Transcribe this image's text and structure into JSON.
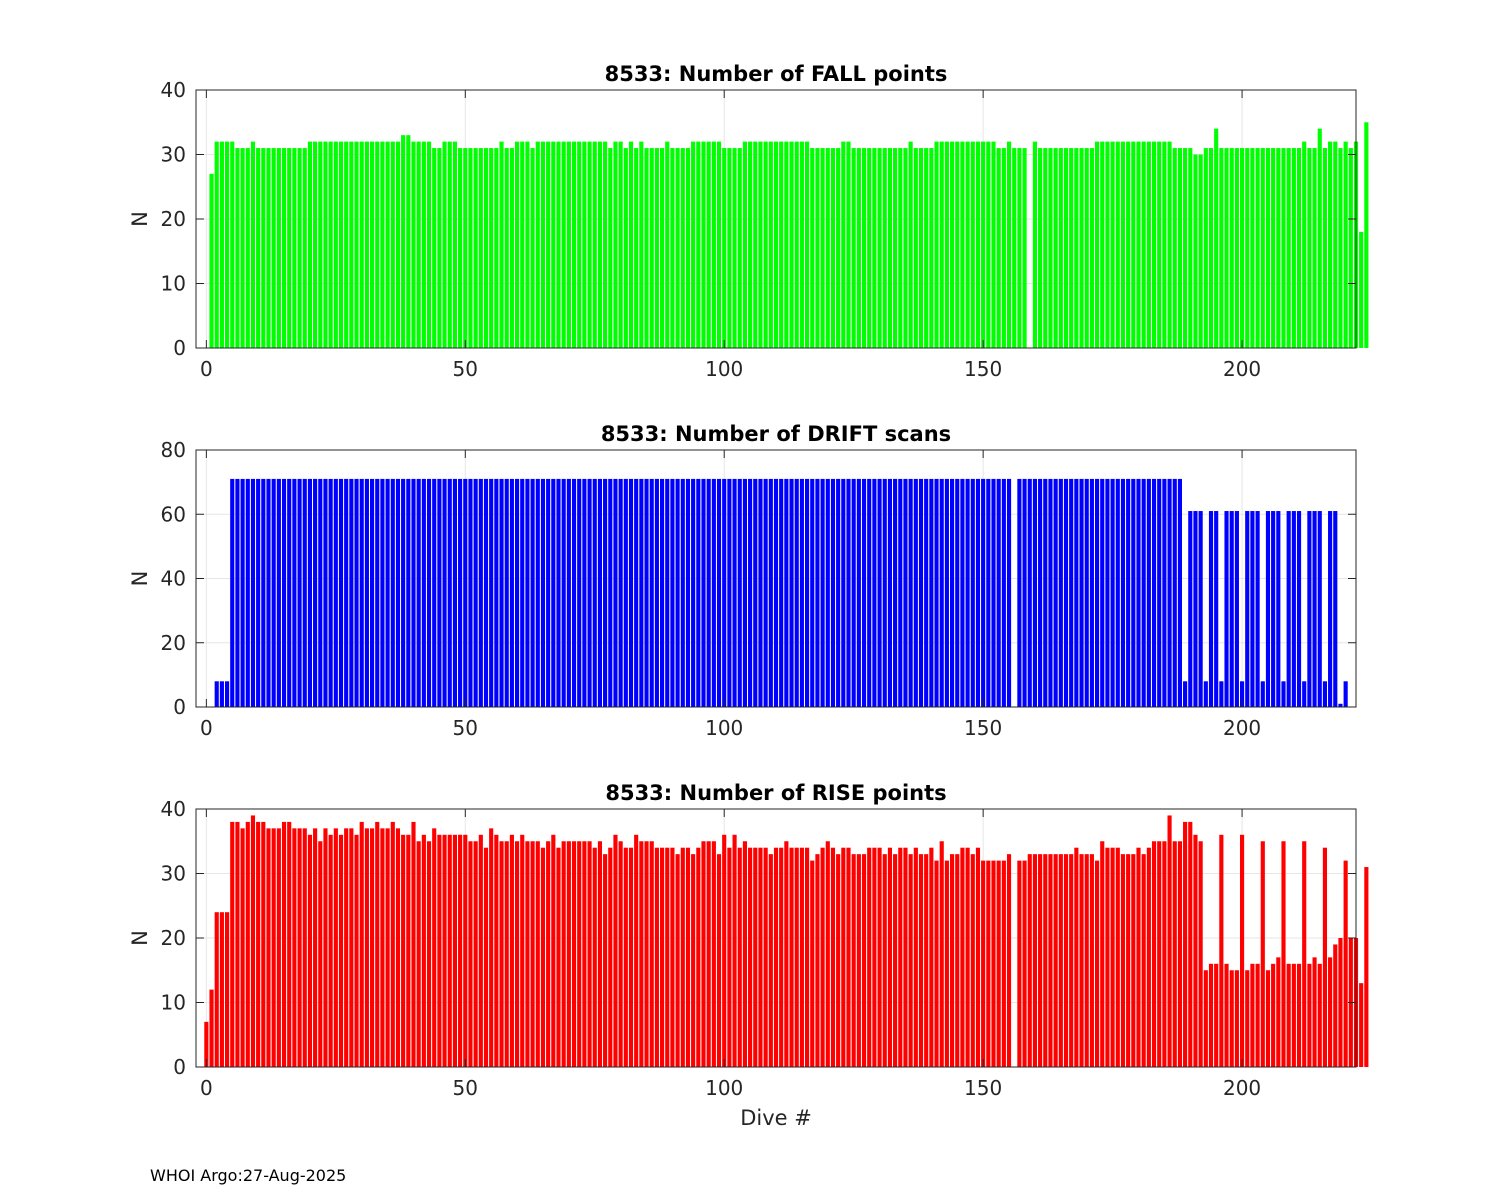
{
  "footer": "WHOI Argo:27-Aug-2025",
  "chart_data": [
    {
      "type": "bar",
      "title": "8533: Number of FALL points",
      "xlabel": "",
      "ylabel": "N",
      "xlim": [
        -2,
        222
      ],
      "ylim": [
        0,
        40
      ],
      "xticks": [
        0,
        50,
        100,
        150,
        200
      ],
      "yticks": [
        0,
        10,
        20,
        30,
        40
      ],
      "grid": true,
      "color": "#00ff00",
      "x_start": 1,
      "values": [
        27,
        32,
        32,
        32,
        32,
        31,
        31,
        31,
        32,
        31,
        31,
        31,
        31,
        31,
        31,
        31,
        31,
        31,
        31,
        32,
        32,
        32,
        32,
        32,
        32,
        32,
        32,
        32,
        32,
        32,
        32,
        32,
        32,
        32,
        32,
        32,
        32,
        33,
        33,
        32,
        32,
        32,
        32,
        31,
        31,
        32,
        32,
        32,
        31,
        31,
        31,
        31,
        31,
        31,
        31,
        31,
        32,
        31,
        31,
        32,
        32,
        32,
        31,
        32,
        32,
        32,
        32,
        32,
        32,
        32,
        32,
        32,
        32,
        32,
        32,
        32,
        32,
        31,
        32,
        32,
        31,
        32,
        31,
        32,
        31,
        31,
        31,
        31,
        32,
        31,
        31,
        31,
        31,
        32,
        32,
        32,
        32,
        32,
        32,
        31,
        31,
        31,
        31,
        32,
        32,
        32,
        32,
        32,
        32,
        32,
        32,
        32,
        32,
        32,
        32,
        32,
        31,
        31,
        31,
        31,
        31,
        31,
        32,
        32,
        31,
        31,
        31,
        31,
        31,
        31,
        31,
        31,
        31,
        31,
        31,
        32,
        31,
        31,
        31,
        31,
        32,
        32,
        32,
        32,
        32,
        32,
        32,
        32,
        32,
        32,
        32,
        32,
        31,
        31,
        32,
        31,
        31,
        31,
        null,
        32,
        31,
        31,
        31,
        31,
        31,
        31,
        31,
        31,
        31,
        31,
        31,
        32,
        32,
        32,
        32,
        32,
        32,
        32,
        32,
        32,
        32,
        32,
        32,
        32,
        32,
        32,
        31,
        31,
        31,
        31,
        30,
        30,
        31,
        31,
        34,
        31,
        31,
        31,
        31,
        31,
        31,
        31,
        31,
        31,
        31,
        31,
        31,
        31,
        31,
        31,
        31,
        32,
        31,
        31,
        34,
        31,
        32,
        32,
        31,
        32,
        31,
        32,
        18,
        35
      ]
    },
    {
      "type": "bar",
      "title": "8533: Number of DRIFT scans",
      "xlabel": "",
      "ylabel": "N",
      "xlim": [
        -2,
        222
      ],
      "ylim": [
        0,
        80
      ],
      "xticks": [
        0,
        50,
        100,
        150,
        200
      ],
      "yticks": [
        0,
        20,
        40,
        60,
        80
      ],
      "grid": true,
      "color": "#0000ff",
      "x_start": 1,
      "values": [
        0,
        8,
        8,
        8,
        71,
        71,
        71,
        71,
        71,
        71,
        71,
        71,
        71,
        71,
        71,
        71,
        71,
        71,
        71,
        71,
        71,
        71,
        71,
        71,
        71,
        71,
        71,
        71,
        71,
        71,
        71,
        71,
        71,
        71,
        71,
        71,
        71,
        71,
        71,
        71,
        71,
        71,
        71,
        71,
        71,
        71,
        71,
        71,
        71,
        71,
        71,
        71,
        71,
        71,
        71,
        71,
        71,
        71,
        71,
        71,
        71,
        71,
        71,
        71,
        71,
        71,
        71,
        71,
        71,
        71,
        71,
        71,
        71,
        71,
        71,
        71,
        71,
        71,
        71,
        71,
        71,
        71,
        71,
        71,
        71,
        71,
        71,
        71,
        71,
        71,
        71,
        71,
        71,
        71,
        71,
        71,
        71,
        71,
        71,
        71,
        71,
        71,
        71,
        71,
        71,
        71,
        71,
        71,
        71,
        71,
        71,
        71,
        71,
        71,
        71,
        71,
        71,
        71,
        71,
        71,
        71,
        71,
        71,
        71,
        71,
        71,
        71,
        71,
        71,
        71,
        71,
        71,
        71,
        71,
        71,
        71,
        71,
        71,
        71,
        71,
        71,
        71,
        71,
        71,
        71,
        71,
        71,
        71,
        71,
        71,
        71,
        71,
        71,
        71,
        71,
        null,
        71,
        71,
        71,
        71,
        71,
        71,
        71,
        71,
        71,
        71,
        71,
        71,
        71,
        71,
        71,
        71,
        71,
        71,
        71,
        71,
        71,
        71,
        71,
        71,
        71,
        71,
        71,
        71,
        71,
        71,
        71,
        71,
        8,
        61,
        61,
        61,
        8,
        61,
        61,
        8,
        61,
        61,
        61,
        8,
        61,
        61,
        61,
        8,
        61,
        61,
        61,
        8,
        61,
        61,
        61,
        8,
        61,
        61,
        61,
        8,
        61,
        61,
        1,
        8
      ]
    },
    {
      "type": "bar",
      "title": "8533: Number of RISE points",
      "xlabel": "Dive #",
      "ylabel": "N",
      "xlim": [
        -2,
        222
      ],
      "ylim": [
        0,
        40
      ],
      "xticks": [
        0,
        50,
        100,
        150,
        200
      ],
      "yticks": [
        0,
        10,
        20,
        30,
        40
      ],
      "grid": true,
      "color": "#ff0000",
      "x_start": 0,
      "values": [
        7,
        12,
        24,
        24,
        24,
        38,
        38,
        37,
        38,
        39,
        38,
        38,
        37,
        37,
        37,
        38,
        38,
        37,
        37,
        37,
        36,
        37,
        35,
        37,
        36,
        37,
        36,
        37,
        37,
        36,
        38,
        37,
        37,
        38,
        37,
        37,
        38,
        37,
        36,
        36,
        38,
        35,
        36,
        35,
        37,
        36,
        36,
        36,
        36,
        36,
        36,
        35,
        35,
        36,
        34,
        37,
        36,
        35,
        35,
        36,
        35,
        36,
        35,
        35,
        35,
        34,
        35,
        36,
        34,
        35,
        35,
        35,
        35,
        35,
        35,
        34,
        35,
        33,
        34,
        36,
        35,
        34,
        34,
        36,
        35,
        35,
        35,
        34,
        34,
        34,
        34,
        33,
        34,
        34,
        33,
        34,
        35,
        35,
        35,
        33,
        36,
        34,
        36,
        34,
        35,
        34,
        34,
        34,
        34,
        33,
        34,
        34,
        35,
        34,
        34,
        34,
        34,
        32,
        33,
        34,
        35,
        34,
        33,
        34,
        34,
        33,
        33,
        33,
        34,
        34,
        34,
        33,
        34,
        33,
        34,
        34,
        33,
        34,
        33,
        33,
        34,
        32,
        35,
        32,
        33,
        33,
        34,
        34,
        33,
        34,
        32,
        32,
        32,
        32,
        32,
        33,
        null,
        32,
        32,
        33,
        33,
        33,
        33,
        33,
        33,
        33,
        33,
        33,
        34,
        33,
        33,
        33,
        32,
        35,
        34,
        34,
        34,
        33,
        33,
        33,
        34,
        33,
        34,
        35,
        35,
        35,
        39,
        35,
        35,
        38,
        38,
        36,
        35,
        15,
        16,
        16,
        36,
        16,
        15,
        15,
        36,
        15,
        16,
        16,
        35,
        15,
        16,
        17,
        35,
        16,
        16,
        16,
        35,
        16,
        17,
        16,
        34,
        17,
        19,
        20,
        32,
        20,
        20,
        13,
        31
      ]
    }
  ]
}
